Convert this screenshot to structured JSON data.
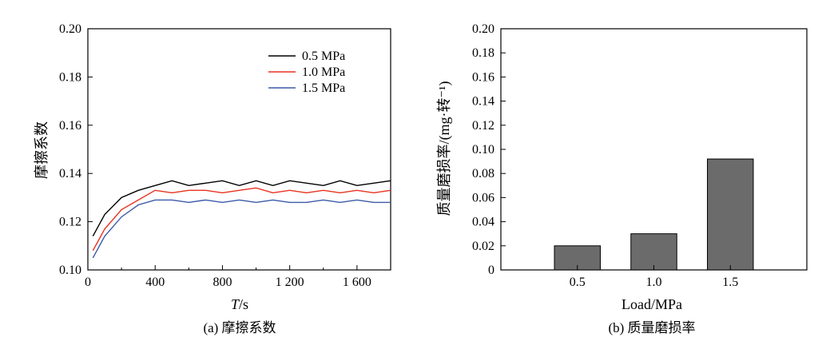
{
  "chart_data": [
    {
      "type": "line",
      "caption": "(a) 摩擦系数",
      "xlabel_var": "T",
      "xlabel_unit": "/s",
      "ylabel": "摩擦系数",
      "xlim": [
        0,
        1800
      ],
      "ylim": [
        0.1,
        0.2
      ],
      "x_ticks": [
        0,
        400,
        800,
        1200,
        1600
      ],
      "x_tick_labels": [
        "0",
        "400",
        "800",
        "1 200",
        "1 600"
      ],
      "y_ticks": [
        0.1,
        0.12,
        0.14,
        0.16,
        0.18,
        0.2
      ],
      "y_tick_labels": [
        "0.10",
        "0.12",
        "0.14",
        "0.16",
        "0.18",
        "0.20"
      ],
      "legend_position": "top-right",
      "x": [
        30,
        100,
        200,
        300,
        400,
        500,
        600,
        700,
        800,
        900,
        1000,
        1100,
        1200,
        1300,
        1400,
        1500,
        1600,
        1700,
        1800
      ],
      "series": [
        {
          "name": "0.5 MPa",
          "color": "#000000",
          "values": [
            0.114,
            0.123,
            0.13,
            0.133,
            0.135,
            0.137,
            0.135,
            0.136,
            0.137,
            0.135,
            0.137,
            0.135,
            0.137,
            0.136,
            0.135,
            0.137,
            0.135,
            0.136,
            0.137
          ]
        },
        {
          "name": "1.0 MPa",
          "color": "#e8321e",
          "values": [
            0.108,
            0.117,
            0.125,
            0.129,
            0.133,
            0.132,
            0.133,
            0.133,
            0.132,
            0.133,
            0.134,
            0.132,
            0.133,
            0.132,
            0.133,
            0.132,
            0.133,
            0.132,
            0.133
          ]
        },
        {
          "name": "1.5 MPa",
          "color": "#3c5aa8",
          "values": [
            0.105,
            0.114,
            0.122,
            0.127,
            0.129,
            0.129,
            0.128,
            0.129,
            0.128,
            0.129,
            0.128,
            0.129,
            0.128,
            0.128,
            0.129,
            0.128,
            0.129,
            0.128,
            0.128
          ]
        }
      ]
    },
    {
      "type": "bar",
      "caption": "(b) 质量磨损率",
      "xlabel": "Load/MPa",
      "ylabel": "质量磨损率/(mg·转⁻¹)",
      "categories": [
        "0.5",
        "1.0",
        "1.5"
      ],
      "values": [
        0.02,
        0.03,
        0.092
      ],
      "ylim": [
        0,
        0.2
      ],
      "y_ticks": [
        0,
        0.02,
        0.04,
        0.06,
        0.08,
        0.1,
        0.12,
        0.14,
        0.16,
        0.18,
        0.2
      ],
      "y_tick_labels": [
        "0",
        "0.02",
        "0.04",
        "0.06",
        "0.08",
        "0.10",
        "0.12",
        "0.14",
        "0.16",
        "0.18",
        "0.20"
      ],
      "bar_color": "#6b6b6b"
    }
  ]
}
